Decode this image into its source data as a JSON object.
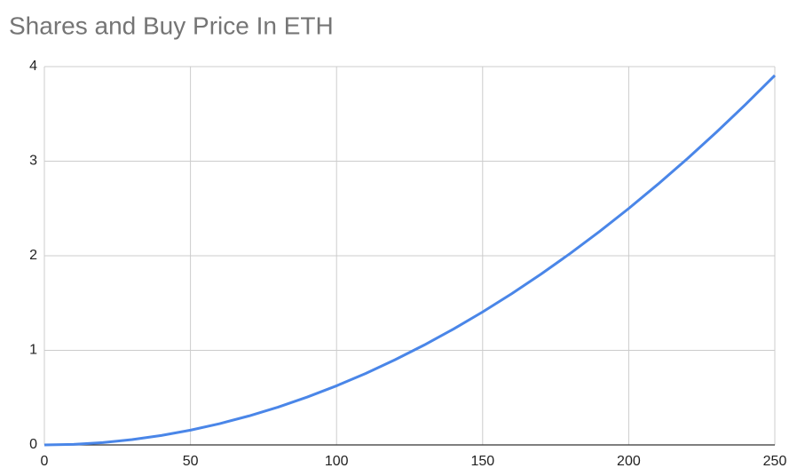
{
  "chart_data": {
    "type": "line",
    "title": "Shares and Buy Price In ETH",
    "x": [
      0,
      10,
      20,
      30,
      40,
      50,
      60,
      70,
      80,
      90,
      100,
      110,
      120,
      130,
      140,
      150,
      160,
      170,
      180,
      190,
      200,
      210,
      220,
      230,
      240,
      250
    ],
    "series": [
      {
        "color": "#4a86e8",
        "values": [
          0,
          0.00625,
          0.025,
          0.05625,
          0.1,
          0.15625,
          0.225,
          0.30625,
          0.4,
          0.50625,
          0.625,
          0.75625,
          0.9,
          1.05625,
          1.225,
          1.40625,
          1.6,
          1.80625,
          2.025,
          2.25625,
          2.5,
          2.75625,
          3.025,
          3.30625,
          3.6,
          3.90625
        ]
      }
    ],
    "xlim": [
      0,
      250
    ],
    "xticks": [
      0,
      50,
      100,
      150,
      200,
      250
    ],
    "ylim": [
      0,
      4
    ],
    "yticks": [
      0,
      1,
      2,
      3,
      4
    ],
    "grid": true
  }
}
